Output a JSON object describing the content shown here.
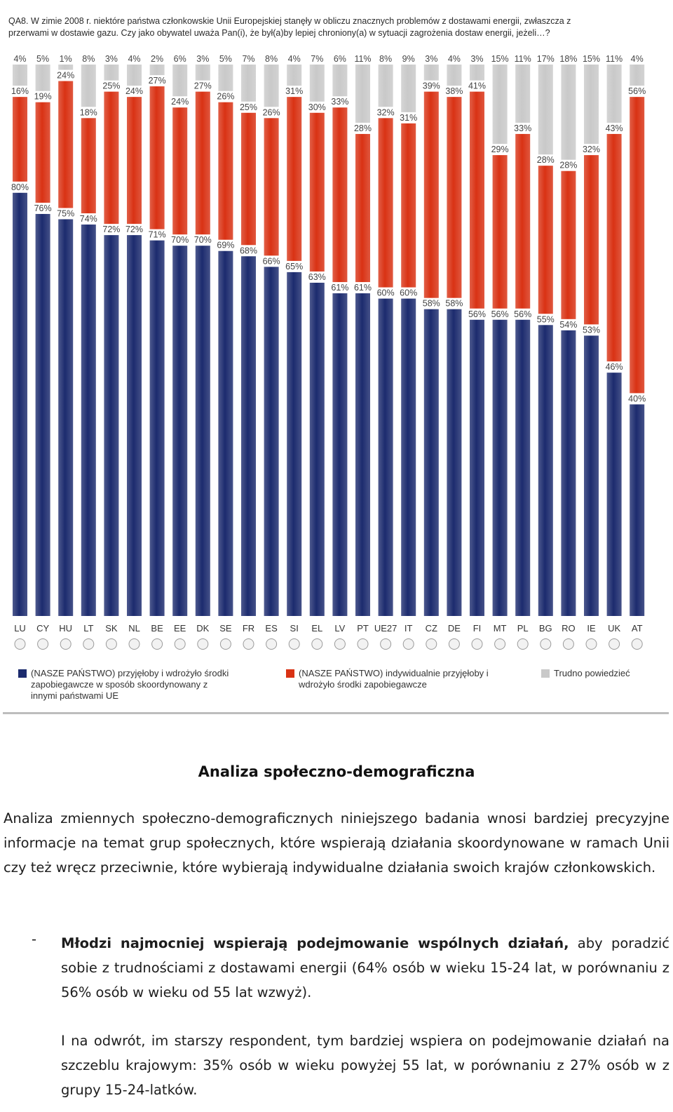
{
  "question": {
    "line1": "QA8. W zimie 2008 r. niektóre państwa członkowskie Unii Europejskiej stanęły w obliczu znacznych problemów z dostawami energii, zwłaszcza z",
    "line2": "przerwami w dostawie gazu. Czy jako obywatel uważa Pan(i), że był(a)by lepiej chroniony(a) w sytuacji zagrożenia dostaw energii, jeżeli…?"
  },
  "legend": {
    "blue": {
      "line1": "(NASZE PAŃSTWO) przyjęłoby i wdrożyło środki",
      "line2": "zapobiegawcze w sposób skoordynowany z",
      "line3": "innymi państwami UE"
    },
    "red": {
      "line1": "(NASZE PAŃSTWO) indywidualnie przyjęłoby i",
      "line2": "wdrożyło środki zapobiegawcze"
    },
    "grey": {
      "line1": "Trudno powiedzieć"
    }
  },
  "colors": {
    "coordinated": "#1c2b6e",
    "individual": "#d93214",
    "dont_know": "#c9c9c9"
  },
  "chart_data": {
    "type": "bar",
    "stacked": true,
    "categories": [
      "LU",
      "CY",
      "HU",
      "LT",
      "SK",
      "NL",
      "BE",
      "EE",
      "DK",
      "SE",
      "FR",
      "ES",
      "SI",
      "EL",
      "LV",
      "PT",
      "UE27",
      "IT",
      "CZ",
      "DE",
      "FI",
      "MT",
      "PL",
      "BG",
      "RO",
      "IE",
      "UK",
      "AT"
    ],
    "series": [
      {
        "name": "(NASZE PAŃSTWO) przyjęłoby i wdrożyło środki zapobiegawcze w sposób skoordynowany z innymi państwami UE",
        "color": "#1c2b6e",
        "values": [
          80,
          76,
          75,
          74,
          72,
          72,
          71,
          70,
          70,
          69,
          68,
          66,
          65,
          63,
          61,
          61,
          60,
          60,
          58,
          58,
          56,
          56,
          56,
          55,
          54,
          53,
          46,
          40
        ]
      },
      {
        "name": "(NASZE PAŃSTWO) indywidualnie przyjęłoby i wdrożyło środki zapobiegawcze",
        "color": "#d93214",
        "values": [
          16,
          19,
          24,
          18,
          25,
          24,
          27,
          24,
          27,
          26,
          25,
          26,
          31,
          30,
          33,
          28,
          32,
          31,
          39,
          38,
          41,
          29,
          33,
          28,
          28,
          32,
          43,
          56
        ]
      },
      {
        "name": "Trudno powiedzieć",
        "color": "#c9c9c9",
        "values": [
          4,
          5,
          1,
          8,
          3,
          4,
          2,
          6,
          3,
          5,
          7,
          8,
          4,
          7,
          6,
          11,
          8,
          9,
          3,
          4,
          3,
          15,
          11,
          17,
          18,
          15,
          11,
          4
        ]
      }
    ],
    "value_suffix": "%",
    "ylim": [
      0,
      100
    ]
  },
  "heading": "Analiza społeczno-demograficzna",
  "intro": "Analiza zmiennych społeczno-demograficznych niniejszego badania wnosi bardziej precyzyjne informacje na temat grup społecznych, które wspierają działania skoordynowane w ramach Unii czy też wręcz przeciwnie, które wybierają indywidualne działania swoich krajów członkowskich.",
  "bullet": {
    "dash": "-",
    "bold": "Młodzi najmocniej wspierają podejmowanie wspólnych działań,",
    "rest": " aby poradzić sobie z trudnościami z dostawami energii (64% osób w wieku 15-24 lat, w porównaniu z 56% osób w wieku od 55 lat wzwyż).",
    "para2": "I na odwrót, im starszy respondent, tym bardziej wspiera on podejmowanie działań na szczeblu krajowym: 35% osób w wieku powyżej 55 lat, w porównaniu z 27% osób w z grupy 15-24-latków."
  }
}
